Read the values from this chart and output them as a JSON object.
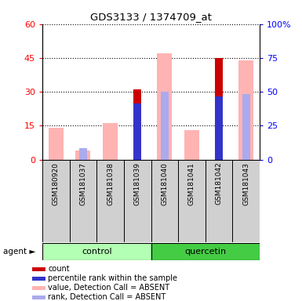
{
  "title": "GDS3133 / 1374709_at",
  "samples": [
    "GSM180920",
    "GSM181037",
    "GSM181038",
    "GSM181039",
    "GSM181040",
    "GSM181041",
    "GSM181042",
    "GSM181043"
  ],
  "ylim_left": [
    0,
    60
  ],
  "ylim_right": [
    0,
    100
  ],
  "yticks_left": [
    0,
    15,
    30,
    45,
    60
  ],
  "yticks_right": [
    0,
    25,
    50,
    75,
    100
  ],
  "yticklabels_right": [
    "0",
    "25",
    "50",
    "75",
    "100%"
  ],
  "color_count": "#cc0000",
  "color_rank": "#3333cc",
  "color_value_absent": "#ffb3b3",
  "color_rank_absent": "#aaaaee",
  "count": [
    0,
    0,
    0,
    31,
    0,
    0,
    45,
    0
  ],
  "rank": [
    0,
    0,
    0,
    25,
    0,
    0,
    28,
    0
  ],
  "value_absent": [
    14,
    4,
    16,
    0,
    47,
    13,
    0,
    44
  ],
  "rank_absent": [
    0,
    5,
    0,
    0,
    30,
    0,
    28,
    29
  ],
  "control_color": "#b3ffb3",
  "quercetin_color": "#44cc44",
  "legend_items": [
    {
      "label": "count",
      "color": "#cc0000"
    },
    {
      "label": "percentile rank within the sample",
      "color": "#3333cc"
    },
    {
      "label": "value, Detection Call = ABSENT",
      "color": "#ffb3b3"
    },
    {
      "label": "rank, Detection Call = ABSENT",
      "color": "#aaaaee"
    }
  ]
}
